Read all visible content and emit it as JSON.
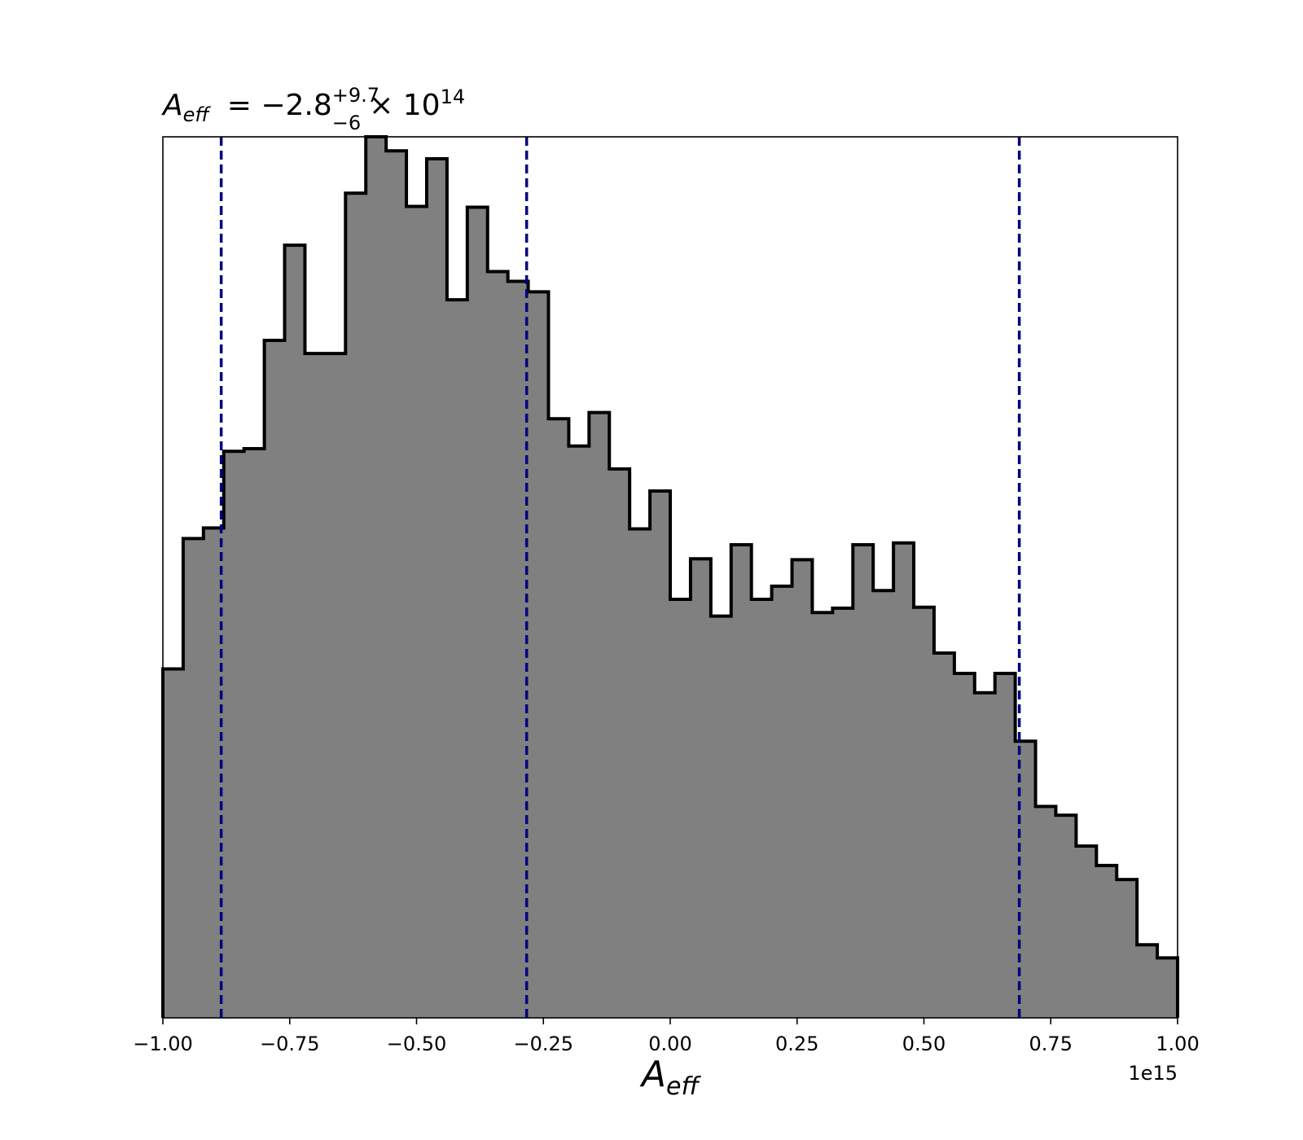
{
  "chart_data": {
    "type": "histogram",
    "title": {
      "symbol": "A",
      "symbol_sub": "eff",
      "text": "= −2.8",
      "sup": "+9.7",
      "sub": "−6",
      "suffix": "× 10",
      "exponent": "14"
    },
    "xlabel": {
      "symbol": "A",
      "sub": "eff"
    },
    "ylabel": "",
    "x_offset_label": "1e15",
    "xlim": [
      -1.0,
      1.0
    ],
    "ylim": [
      0,
      1.0
    ],
    "xticks": [
      -1.0,
      -0.75,
      -0.5,
      -0.25,
      0.0,
      0.25,
      0.5,
      0.75,
      1.0
    ],
    "xtick_labels": [
      "−1.00",
      "−0.75",
      "−0.50",
      "−0.25",
      "0.00",
      "0.25",
      "0.50",
      "0.75",
      "1.00"
    ],
    "bin_edges": [
      -1.0,
      -0.96,
      -0.92,
      -0.88,
      -0.84,
      -0.8,
      -0.76,
      -0.72,
      -0.68,
      -0.64,
      -0.6,
      -0.56,
      -0.52,
      -0.48,
      -0.44,
      -0.4,
      -0.36,
      -0.32,
      -0.28,
      -0.24,
      -0.2,
      -0.16,
      -0.12,
      -0.08,
      -0.04,
      0.0,
      0.04,
      0.08,
      0.12,
      0.16,
      0.2,
      0.24,
      0.28,
      0.32,
      0.36,
      0.4,
      0.44,
      0.48,
      0.52,
      0.56,
      0.6,
      0.64,
      0.68,
      0.72,
      0.76,
      0.8,
      0.84,
      0.88,
      0.92,
      0.96,
      1.0
    ],
    "values": [
      0.396,
      0.544,
      0.556,
      0.643,
      0.646,
      0.769,
      0.877,
      0.754,
      0.754,
      0.936,
      1.0,
      0.984,
      0.921,
      0.975,
      0.815,
      0.92,
      0.847,
      0.836,
      0.824,
      0.68,
      0.649,
      0.687,
      0.623,
      0.555,
      0.598,
      0.475,
      0.521,
      0.456,
      0.537,
      0.475,
      0.49,
      0.52,
      0.46,
      0.465,
      0.537,
      0.485,
      0.539,
      0.466,
      0.414,
      0.391,
      0.369,
      0.391,
      0.314,
      0.24,
      0.23,
      0.195,
      0.173,
      0.157,
      0.083,
      0.068
    ],
    "fill_color": "#808080",
    "edge_color": "#000000",
    "vlines": [
      -0.885,
      -0.283,
      0.688
    ],
    "vline_color": "#00007f",
    "vline_style": "dashed",
    "grid": false
  }
}
